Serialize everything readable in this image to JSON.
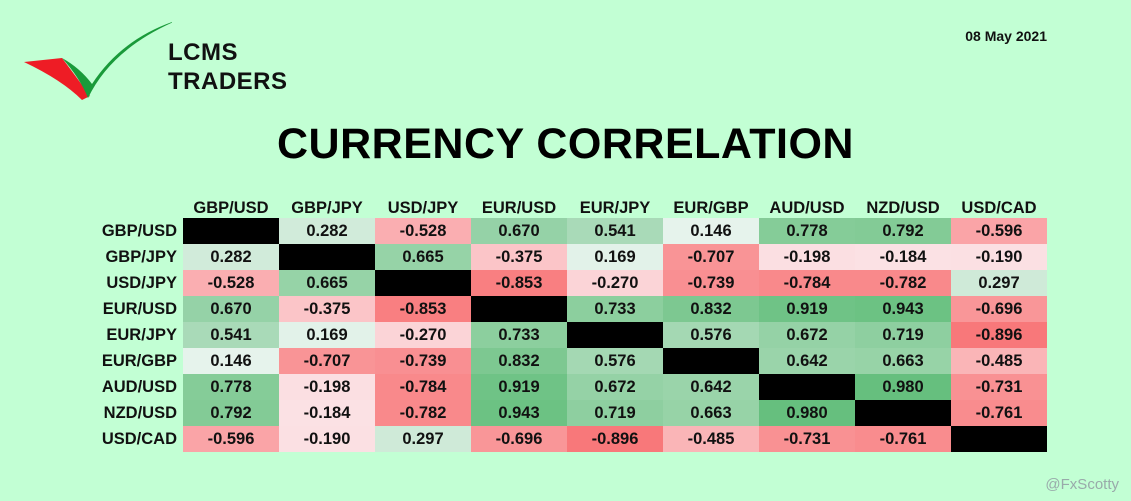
{
  "brand": {
    "line1": "LCMS",
    "line2": "TRADERS"
  },
  "date": "08 May 2021",
  "watermark": "@FxScotty",
  "chart_data": {
    "type": "heatmap",
    "title": "CURRENCY CORRELATION",
    "columns": [
      "GBP/USD",
      "GBP/JPY",
      "USD/JPY",
      "EUR/USD",
      "EUR/JPY",
      "EUR/GBP",
      "AUD/USD",
      "NZD/USD",
      "USD/CAD"
    ],
    "rows": [
      "GBP/USD",
      "GBP/JPY",
      "USD/JPY",
      "EUR/USD",
      "EUR/JPY",
      "EUR/GBP",
      "AUD/USD",
      "NZD/USD",
      "USD/CAD"
    ],
    "values": [
      [
        null,
        0.282,
        -0.528,
        0.67,
        0.541,
        0.146,
        0.778,
        0.792,
        -0.596
      ],
      [
        0.282,
        null,
        0.665,
        -0.375,
        0.169,
        -0.707,
        -0.198,
        -0.184,
        -0.19
      ],
      [
        -0.528,
        0.665,
        null,
        -0.853,
        -0.27,
        -0.739,
        -0.784,
        -0.782,
        0.297
      ],
      [
        0.67,
        -0.375,
        -0.853,
        null,
        0.733,
        0.832,
        0.919,
        0.943,
        -0.696
      ],
      [
        0.541,
        0.169,
        -0.27,
        0.733,
        null,
        0.576,
        0.672,
        0.719,
        -0.896
      ],
      [
        0.146,
        -0.707,
        -0.739,
        0.832,
        0.576,
        null,
        0.642,
        0.663,
        -0.485
      ],
      [
        0.778,
        -0.198,
        -0.784,
        0.919,
        0.672,
        0.642,
        null,
        0.98,
        -0.731
      ],
      [
        0.792,
        -0.184,
        -0.782,
        0.943,
        0.719,
        0.663,
        0.98,
        null,
        -0.761
      ],
      [
        -0.596,
        -0.19,
        0.297,
        -0.696,
        -0.896,
        -0.485,
        -0.731,
        -0.761,
        null
      ]
    ],
    "color_scale": {
      "negative": "#f8696b",
      "neutral": "#fcfcff",
      "positive": "#63be7b",
      "diagonal": "#000000"
    }
  }
}
